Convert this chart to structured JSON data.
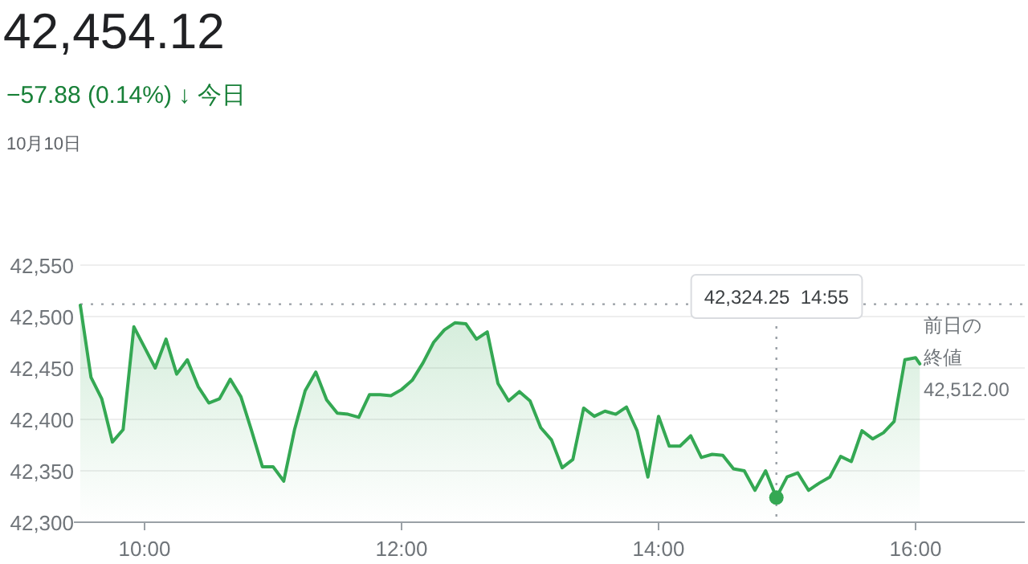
{
  "chart_data": {
    "type": "area",
    "title": "42,454.12",
    "subtitle": "−57.88 (0.14%) ↓ 今日",
    "annotations": [
      "10月10日",
      "42,324.25  14:55"
    ],
    "x": [
      9.5,
      9.583,
      9.667,
      9.75,
      9.833,
      9.917,
      10.0,
      10.083,
      10.167,
      10.25,
      10.333,
      10.417,
      10.5,
      10.583,
      10.667,
      10.75,
      10.833,
      10.917,
      11.0,
      11.083,
      11.167,
      11.25,
      11.333,
      11.417,
      11.5,
      11.583,
      11.667,
      11.75,
      11.833,
      11.917,
      12.0,
      12.083,
      12.167,
      12.25,
      12.333,
      12.417,
      12.5,
      12.583,
      12.667,
      12.75,
      12.833,
      12.917,
      13.0,
      13.083,
      13.167,
      13.25,
      13.333,
      13.417,
      13.5,
      13.583,
      13.667,
      13.75,
      13.833,
      13.917,
      14.0,
      14.083,
      14.167,
      14.25,
      14.333,
      14.417,
      14.5,
      14.583,
      14.667,
      14.75,
      14.833,
      14.917,
      15.0,
      15.083,
      15.167,
      15.25,
      15.333,
      15.417,
      15.5,
      15.583,
      15.667,
      15.75,
      15.833,
      15.917,
      16.0,
      16.033
    ],
    "series": [
      {
        "color": "#34a853",
        "values": [
          42511,
          42441,
          42420,
          42378,
          42390,
          42490,
          42470,
          42450,
          42478,
          42444,
          42458,
          42432,
          42416,
          42420,
          42439,
          42422,
          42389,
          42354,
          42354,
          42340,
          42390,
          42428,
          42446,
          42419,
          42406,
          42405,
          42402,
          42424,
          42424,
          42423,
          42429,
          42438,
          42455,
          42475,
          42487,
          42494,
          42493,
          42478,
          42485,
          42435,
          42418,
          42427,
          42418,
          42392,
          42380,
          42353,
          42361,
          42411,
          42403,
          42408,
          42405,
          42412,
          42389,
          42344,
          42403,
          42374,
          42374,
          42384,
          42363,
          42366,
          42365,
          42352,
          42350,
          42331,
          42350,
          42324,
          42344,
          42348,
          42331,
          42338,
          42344,
          42364,
          42359,
          42389,
          42381,
          42387,
          42398,
          42458,
          42460,
          42454
        ]
      },
      {
        "type": "scatter",
        "color": "#34a853",
        "x": [
          14.917
        ],
        "values": [
          42324
        ]
      }
    ],
    "xlim": [
      9.5,
      16.85
    ],
    "xticks": [
      {
        "value": 10,
        "label": "10:00"
      },
      {
        "value": 12,
        "label": "12:00"
      },
      {
        "value": 14,
        "label": "14:00"
      },
      {
        "value": 16,
        "label": "16:00"
      }
    ],
    "ylim": [
      42300,
      42550
    ],
    "yticks": [
      {
        "value": 42300,
        "label": "42,300"
      },
      {
        "value": 42350,
        "label": "42,350"
      },
      {
        "value": 42400,
        "label": "42,400"
      },
      {
        "value": 42450,
        "label": "42,450"
      },
      {
        "value": 42500,
        "label": "42,500"
      },
      {
        "value": 42550,
        "label": "42,550"
      }
    ],
    "grid": "y",
    "ref_lines": [
      {
        "axis": "y",
        "value": 42512,
        "label": "前日の終値\n42,512.00",
        "line_style": "dotted"
      },
      {
        "axis": "x",
        "value": 14.917,
        "label": null,
        "line_style": "dotted"
      }
    ]
  }
}
